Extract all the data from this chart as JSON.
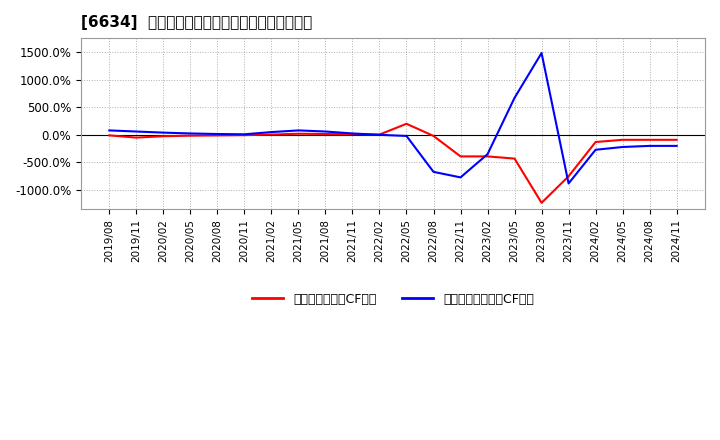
{
  "title": "[6634]  有利子負債キャッシュフロー比率の推移",
  "ylabel": "",
  "ylim": [
    -1350,
    1750
  ],
  "yticks": [
    -1000,
    -500,
    0,
    500,
    1000,
    1500
  ],
  "ytick_labels": [
    "-1000.0%",
    "-500.0%",
    "0.0%",
    "500.0%",
    "1000.0%",
    "1500.0%"
  ],
  "background_color": "#ffffff",
  "plot_bg_color": "#ffffff",
  "grid_color": "#b0b0b0",
  "legend1_label": "有利子負債営業CF比率",
  "legend2_label": "有利子負債フリーCF比率",
  "line1_color": "#ff0000",
  "line2_color": "#0000ff",
  "dates": [
    "2019/08",
    "2019/11",
    "2020/02",
    "2020/05",
    "2020/08",
    "2020/11",
    "2021/02",
    "2021/05",
    "2021/08",
    "2021/11",
    "2022/02",
    "2022/05",
    "2022/08",
    "2022/11",
    "2023/02",
    "2023/05",
    "2023/08",
    "2023/11",
    "2024/02",
    "2024/05",
    "2024/08",
    "2024/11"
  ],
  "series1": [
    -10,
    -50,
    -25,
    -15,
    -10,
    -5,
    5,
    20,
    15,
    10,
    5,
    200,
    -20,
    -390,
    -390,
    -430,
    -1230,
    -750,
    -130,
    -90,
    -90,
    -90
  ],
  "series2": [
    80,
    60,
    40,
    25,
    15,
    10,
    50,
    80,
    60,
    25,
    0,
    -20,
    -670,
    -770,
    -350,
    670,
    1480,
    -880,
    -270,
    -220,
    -200,
    -200
  ]
}
